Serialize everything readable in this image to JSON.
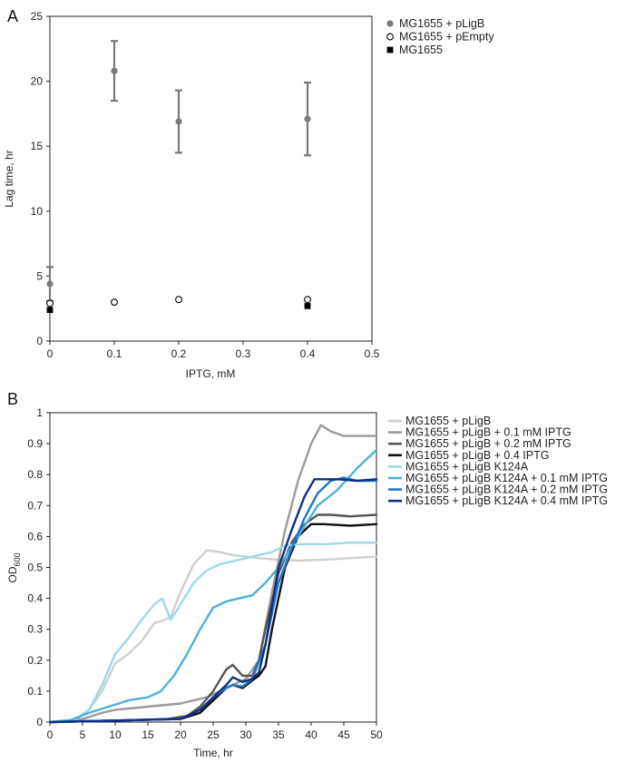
{
  "panels": {
    "a": {
      "letter": "A"
    },
    "b": {
      "letter": "B"
    }
  },
  "chart_data": [
    {
      "type": "scatter",
      "panel": "A",
      "xlabel": "IPTG, mM",
      "ylabel": "Lag time, hr",
      "xlim": [
        0,
        0.5
      ],
      "ylim": [
        0,
        25
      ],
      "xticks": [
        0,
        0.1,
        0.2,
        0.3,
        0.4,
        0.5
      ],
      "yticks": [
        0,
        5,
        10,
        15,
        20,
        25
      ],
      "grid": false,
      "legend_position": "top-right outside",
      "series": [
        {
          "name": "MG1655 + pLigB",
          "marker": "filled-circle",
          "color": "#7a7a7a",
          "points": [
            {
              "x": 0,
              "y": 4.4,
              "err": 1.3
            },
            {
              "x": 0.1,
              "y": 20.8,
              "err": 2.3
            },
            {
              "x": 0.2,
              "y": 16.9,
              "err": 2.4
            },
            {
              "x": 0.4,
              "y": 17.1,
              "err": 2.8
            }
          ]
        },
        {
          "name": "MG1655 + pEmpty",
          "marker": "open-circle",
          "color": "#000000",
          "points": [
            {
              "x": 0,
              "y": 2.9
            },
            {
              "x": 0.1,
              "y": 3.0
            },
            {
              "x": 0.2,
              "y": 3.2
            },
            {
              "x": 0.4,
              "y": 3.2
            }
          ]
        },
        {
          "name": "MG1655",
          "marker": "filled-square",
          "color": "#000000",
          "points": [
            {
              "x": 0,
              "y": 2.4
            },
            {
              "x": 0.4,
              "y": 2.7
            }
          ]
        }
      ]
    },
    {
      "type": "line",
      "panel": "B",
      "xlabel": "Time, hr",
      "ylabel_main": "OD",
      "ylabel_sub": "600",
      "xlim": [
        0,
        50
      ],
      "ylim": [
        0,
        1
      ],
      "xticks": [
        0,
        5,
        10,
        15,
        20,
        25,
        30,
        35,
        40,
        45,
        50
      ],
      "yticks": [
        0,
        0.1,
        0.2,
        0.3,
        0.4,
        0.5,
        0.6,
        0.7,
        0.8,
        0.9,
        1
      ],
      "ytick_labels": [
        "0",
        "0.1",
        "0.2",
        "0.3",
        "0.4",
        "0.5",
        "0.6",
        "0.7",
        "0.8",
        "0.9",
        "1"
      ],
      "grid": false,
      "legend_position": "top-right outside",
      "series": [
        {
          "name": "MG1655 + pLigB",
          "color": "#cfcfcf",
          "points": [
            [
              0,
              0
            ],
            [
              4,
              0.01
            ],
            [
              6,
              0.04
            ],
            [
              8,
              0.1
            ],
            [
              10,
              0.19
            ],
            [
              12,
              0.22
            ],
            [
              14,
              0.26
            ],
            [
              16,
              0.32
            ],
            [
              17.5,
              0.33
            ],
            [
              18.5,
              0.34
            ],
            [
              20,
              0.42
            ],
            [
              22,
              0.51
            ],
            [
              24,
              0.555
            ],
            [
              26,
              0.55
            ],
            [
              28,
              0.54
            ],
            [
              30,
              0.535
            ],
            [
              32,
              0.53
            ],
            [
              35,
              0.525
            ],
            [
              38,
              0.522
            ],
            [
              42,
              0.525
            ],
            [
              46,
              0.53
            ],
            [
              50,
              0.535
            ]
          ]
        },
        {
          "name": "MG1655 + pLigB + 0.1 mM IPTG",
          "color": "#9a9a9a",
          "points": [
            [
              0,
              0
            ],
            [
              5,
              0.01
            ],
            [
              8,
              0.03
            ],
            [
              10,
              0.04
            ],
            [
              15,
              0.05
            ],
            [
              20,
              0.06
            ],
            [
              24,
              0.08
            ],
            [
              26,
              0.1
            ],
            [
              28,
              0.12
            ],
            [
              30,
              0.14
            ],
            [
              32,
              0.2
            ],
            [
              34,
              0.42
            ],
            [
              36,
              0.62
            ],
            [
              38,
              0.78
            ],
            [
              40,
              0.9
            ],
            [
              41.5,
              0.96
            ],
            [
              43,
              0.94
            ],
            [
              45,
              0.925
            ],
            [
              50,
              0.925
            ]
          ]
        },
        {
          "name": "MG1655 + pLigB + 0.2 mM IPTG",
          "color": "#555555",
          "points": [
            [
              0,
              0
            ],
            [
              10,
              0.005
            ],
            [
              18,
              0.01
            ],
            [
              21,
              0.02
            ],
            [
              23,
              0.05
            ],
            [
              25,
              0.1
            ],
            [
              27,
              0.17
            ],
            [
              28,
              0.185
            ],
            [
              29.5,
              0.15
            ],
            [
              31,
              0.15
            ],
            [
              32,
              0.2
            ],
            [
              33,
              0.3
            ],
            [
              35,
              0.48
            ],
            [
              37,
              0.58
            ],
            [
              39,
              0.64
            ],
            [
              41,
              0.67
            ],
            [
              43,
              0.67
            ],
            [
              46,
              0.665
            ],
            [
              50,
              0.67
            ]
          ]
        },
        {
          "name": "MG1655 + pLigB + 0.4 IPTG",
          "color": "#111111",
          "points": [
            [
              0,
              0
            ],
            [
              10,
              0.005
            ],
            [
              20,
              0.01
            ],
            [
              23,
              0.03
            ],
            [
              25,
              0.07
            ],
            [
              27,
              0.11
            ],
            [
              28,
              0.12
            ],
            [
              29.5,
              0.11
            ],
            [
              31,
              0.135
            ],
            [
              32,
              0.15
            ],
            [
              33,
              0.18
            ],
            [
              34,
              0.3
            ],
            [
              36,
              0.5
            ],
            [
              38,
              0.6
            ],
            [
              40,
              0.64
            ],
            [
              42,
              0.64
            ],
            [
              46,
              0.635
            ],
            [
              50,
              0.64
            ]
          ]
        },
        {
          "name": "MG1655 + pLigB K124A",
          "color": "#9ed8ea",
          "points": [
            [
              0,
              0
            ],
            [
              4,
              0.01
            ],
            [
              6,
              0.04
            ],
            [
              8,
              0.12
            ],
            [
              10,
              0.22
            ],
            [
              12,
              0.27
            ],
            [
              14,
              0.33
            ],
            [
              16,
              0.38
            ],
            [
              17.2,
              0.4
            ],
            [
              18.5,
              0.33
            ],
            [
              20,
              0.38
            ],
            [
              22,
              0.45
            ],
            [
              24,
              0.49
            ],
            [
              26,
              0.51
            ],
            [
              30,
              0.53
            ],
            [
              34,
              0.55
            ],
            [
              36,
              0.57
            ],
            [
              38,
              0.575
            ],
            [
              42,
              0.575
            ],
            [
              46,
              0.58
            ],
            [
              50,
              0.58
            ]
          ]
        },
        {
          "name": "MG1655 + pLigB K124A + 0.1 mM IPTG",
          "color": "#4fb0d8",
          "points": [
            [
              0,
              0
            ],
            [
              3,
              0.005
            ],
            [
              6,
              0.03
            ],
            [
              9,
              0.05
            ],
            [
              12,
              0.07
            ],
            [
              15,
              0.08
            ],
            [
              17,
              0.1
            ],
            [
              19,
              0.15
            ],
            [
              21,
              0.22
            ],
            [
              23,
              0.3
            ],
            [
              25,
              0.37
            ],
            [
              27,
              0.39
            ],
            [
              29,
              0.4
            ],
            [
              31,
              0.41
            ],
            [
              33,
              0.45
            ],
            [
              35,
              0.5
            ],
            [
              38,
              0.6
            ],
            [
              41,
              0.7
            ],
            [
              44,
              0.75
            ],
            [
              47,
              0.82
            ],
            [
              50,
              0.88
            ]
          ]
        },
        {
          "name": "MG1655 + pLigB K124A + 0.2 mM IPTG",
          "color": "#1f78c8",
          "points": [
            [
              0,
              0
            ],
            [
              10,
              0.005
            ],
            [
              20,
              0.01
            ],
            [
              23,
              0.04
            ],
            [
              25,
              0.08
            ],
            [
              27,
              0.11
            ],
            [
              28,
              0.12
            ],
            [
              29.5,
              0.115
            ],
            [
              31,
              0.14
            ],
            [
              33,
              0.25
            ],
            [
              35,
              0.45
            ],
            [
              37,
              0.56
            ],
            [
              39,
              0.66
            ],
            [
              41,
              0.74
            ],
            [
              43,
              0.78
            ],
            [
              45,
              0.79
            ],
            [
              47,
              0.78
            ],
            [
              50,
              0.78
            ]
          ]
        },
        {
          "name": "MG1655 + pLigB K124A + 0.4 mM IPTG",
          "color": "#0d2f8a",
          "points": [
            [
              0,
              0
            ],
            [
              10,
              0.005
            ],
            [
              20,
              0.01
            ],
            [
              23,
              0.04
            ],
            [
              25,
              0.08
            ],
            [
              27,
              0.12
            ],
            [
              28,
              0.145
            ],
            [
              29.5,
              0.13
            ],
            [
              31,
              0.14
            ],
            [
              32,
              0.16
            ],
            [
              33,
              0.25
            ],
            [
              35,
              0.5
            ],
            [
              37,
              0.62
            ],
            [
              39,
              0.73
            ],
            [
              40.5,
              0.785
            ],
            [
              44,
              0.785
            ],
            [
              47,
              0.78
            ],
            [
              50,
              0.785
            ]
          ]
        }
      ]
    }
  ]
}
